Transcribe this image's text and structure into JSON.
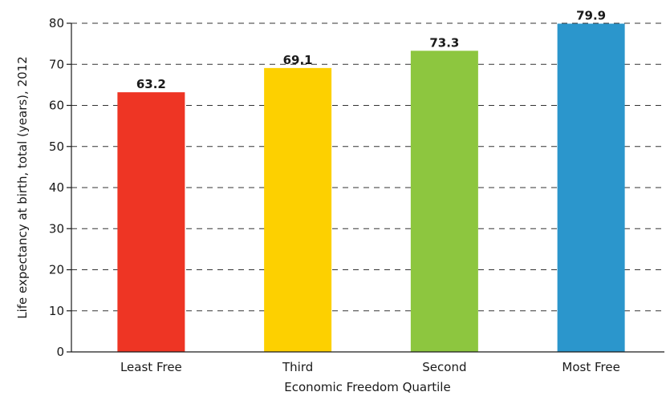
{
  "chart_data": {
    "type": "bar",
    "title": "",
    "xlabel": "Economic Freedom Quartile",
    "ylabel": "Life expectancy at birth, total (years), 2012",
    "categories": [
      "Least Free",
      "Third",
      "Second",
      "Most Free"
    ],
    "values": [
      63.2,
      69.1,
      73.3,
      79.9
    ],
    "data_labels": [
      "63.2",
      "69.1",
      "73.3",
      "79.9"
    ],
    "colors": [
      "#ee3524",
      "#fdd000",
      "#8dc63f",
      "#2b96cc"
    ],
    "ylim": [
      0,
      80
    ],
    "yticks": [
      0,
      10,
      20,
      30,
      40,
      50,
      60,
      70,
      80
    ],
    "grid": true,
    "grid_style": "dashed",
    "legend": "none"
  }
}
